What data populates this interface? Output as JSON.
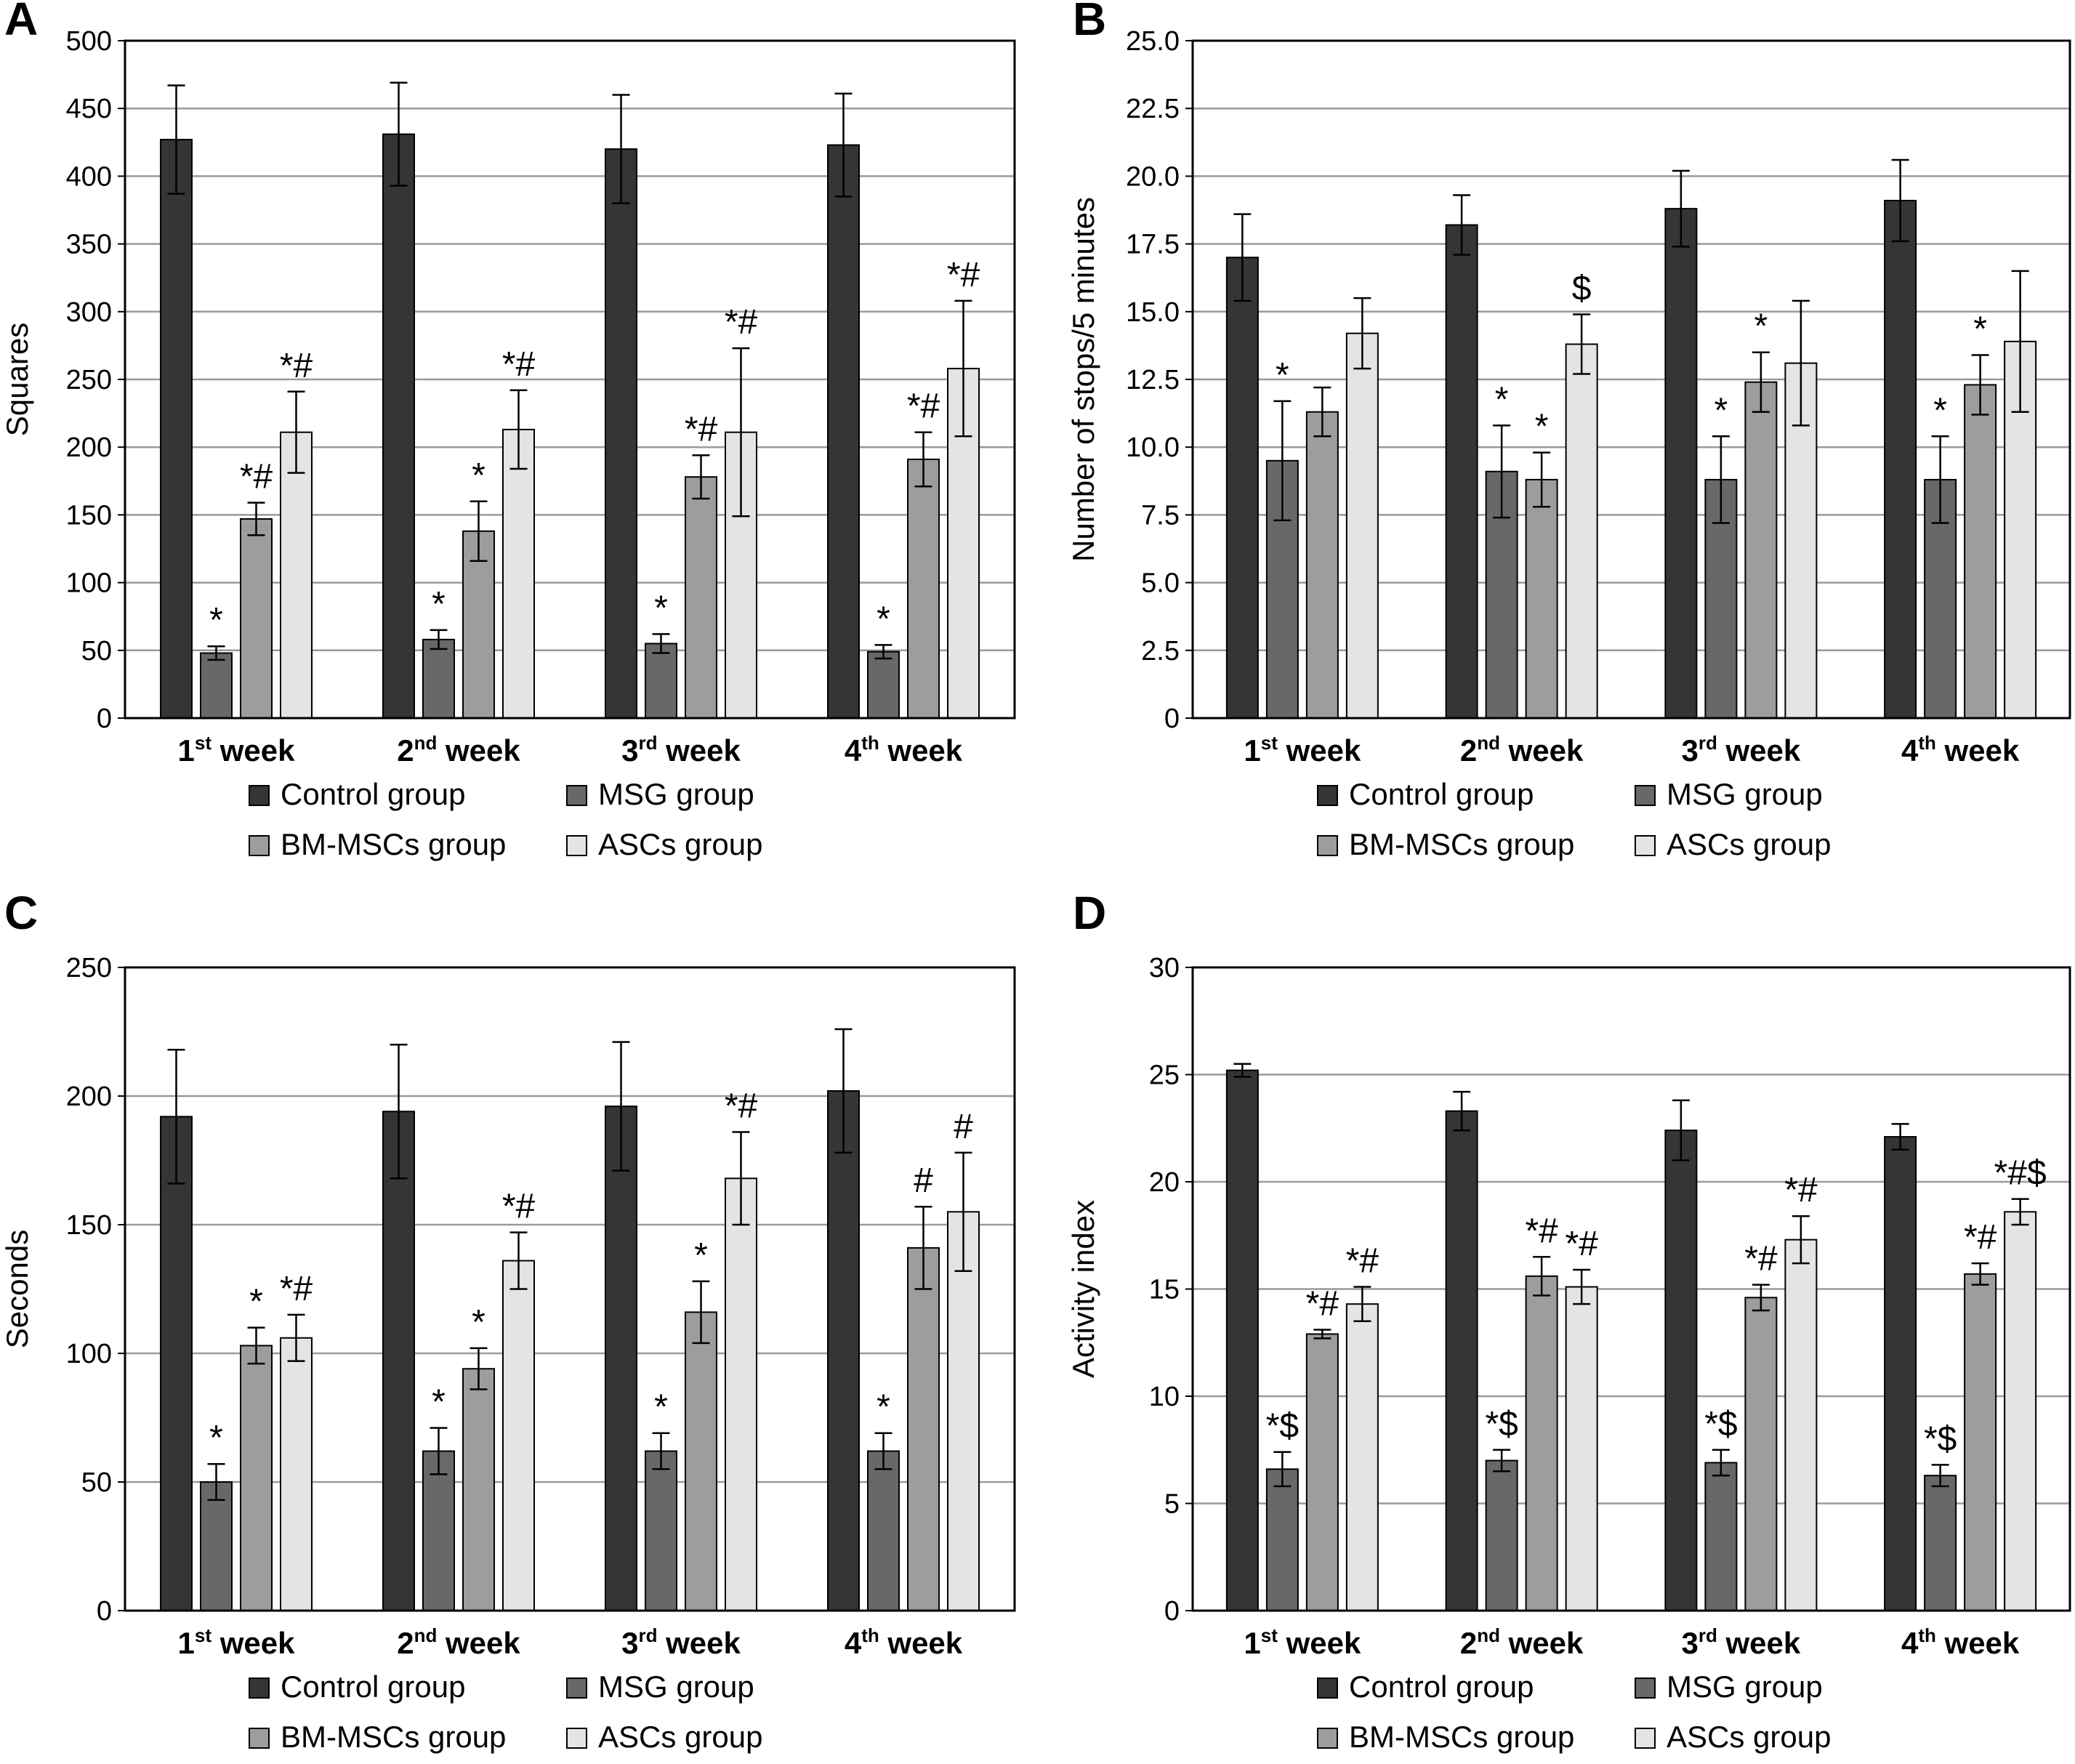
{
  "colors": {
    "control": "#353535",
    "msg": "#686868",
    "bmmsc": "#9d9d9d",
    "asc": "#e4e4e4",
    "grid": "#9a9a9a",
    "axis": "#000000"
  },
  "legend_labels": [
    "Control group",
    "MSG group",
    "BM-MSCs group",
    "ASCs group"
  ],
  "chart_data": [
    {
      "panel_label": "A",
      "type": "bar",
      "ylabel": "Squares",
      "ylim": [
        0,
        500
      ],
      "yticks": [
        "0",
        "50",
        "100",
        "150",
        "200",
        "250",
        "300",
        "350",
        "400",
        "450",
        "500"
      ],
      "grid": true,
      "legend_position": "bottom",
      "categories": [
        {
          "num": "1",
          "sup": "st",
          "word": "week"
        },
        {
          "num": "2",
          "sup": "nd",
          "word": "week"
        },
        {
          "num": "3",
          "sup": "rd",
          "word": "week"
        },
        {
          "num": "4",
          "sup": "th",
          "word": "week"
        }
      ],
      "series": [
        {
          "name": "Control group",
          "values": [
            427,
            431,
            420,
            423
          ],
          "errors": [
            40,
            38,
            40,
            38
          ],
          "annotations": [
            "",
            "",
            "",
            ""
          ]
        },
        {
          "name": "MSG group",
          "values": [
            48,
            58,
            55,
            49
          ],
          "errors": [
            5,
            7,
            7,
            5
          ],
          "annotations": [
            "*",
            "*",
            "*",
            "*"
          ]
        },
        {
          "name": "BM-MSCs group",
          "values": [
            147,
            138,
            178,
            191
          ],
          "errors": [
            12,
            22,
            16,
            20
          ],
          "annotations": [
            "*#",
            "*",
            "*#",
            "*#"
          ]
        },
        {
          "name": "ASCs group",
          "values": [
            211,
            213,
            211,
            258
          ],
          "errors": [
            30,
            29,
            62,
            50
          ],
          "annotations": [
            "*#",
            "*#",
            "*#",
            "*#"
          ]
        }
      ]
    },
    {
      "panel_label": "B",
      "type": "bar",
      "ylabel": "Number of stops/5 minutes",
      "ylim": [
        0,
        25
      ],
      "yticks": [
        "0",
        "2.5",
        "5.0",
        "7.5",
        "10.0",
        "12.5",
        "15.0",
        "17.5",
        "20.0",
        "22.5",
        "25.0"
      ],
      "grid": true,
      "legend_position": "bottom",
      "categories": [
        {
          "num": "1",
          "sup": "st",
          "word": "week"
        },
        {
          "num": "2",
          "sup": "nd",
          "word": "week"
        },
        {
          "num": "3",
          "sup": "rd",
          "word": "week"
        },
        {
          "num": "4",
          "sup": "th",
          "word": "week"
        }
      ],
      "series": [
        {
          "name": "Control group",
          "values": [
            17.0,
            18.2,
            18.8,
            19.1
          ],
          "errors": [
            1.6,
            1.1,
            1.4,
            1.5
          ],
          "annotations": [
            "",
            "",
            "",
            ""
          ]
        },
        {
          "name": "MSG group",
          "values": [
            9.5,
            9.1,
            8.8,
            8.8
          ],
          "errors": [
            2.2,
            1.7,
            1.6,
            1.6
          ],
          "annotations": [
            "*",
            "*",
            "*",
            "*"
          ]
        },
        {
          "name": "BM-MSCs group",
          "values": [
            11.3,
            8.8,
            12.4,
            12.3
          ],
          "errors": [
            0.9,
            1.0,
            1.1,
            1.1
          ],
          "annotations": [
            "",
            "*",
            "*",
            "*"
          ]
        },
        {
          "name": "ASCs group",
          "values": [
            14.2,
            13.8,
            13.1,
            13.9
          ],
          "errors": [
            1.3,
            1.1,
            2.3,
            2.6
          ],
          "annotations": [
            "",
            "$",
            "",
            ""
          ]
        }
      ]
    },
    {
      "panel_label": "C",
      "type": "bar",
      "ylabel": "Seconds",
      "ylim": [
        0,
        250
      ],
      "yticks": [
        "0",
        "50",
        "100",
        "150",
        "200",
        "250"
      ],
      "grid": true,
      "legend_position": "bottom",
      "categories": [
        {
          "num": "1",
          "sup": "st",
          "word": "week"
        },
        {
          "num": "2",
          "sup": "nd",
          "word": "week"
        },
        {
          "num": "3",
          "sup": "rd",
          "word": "week"
        },
        {
          "num": "4",
          "sup": "th",
          "word": "week"
        }
      ],
      "series": [
        {
          "name": "Control group",
          "values": [
            192,
            194,
            196,
            202
          ],
          "errors": [
            26,
            26,
            25,
            24
          ],
          "annotations": [
            "",
            "",
            "",
            ""
          ]
        },
        {
          "name": "MSG group",
          "values": [
            50,
            62,
            62,
            62
          ],
          "errors": [
            7,
            9,
            7,
            7
          ],
          "annotations": [
            "*",
            "*",
            "*",
            "*"
          ]
        },
        {
          "name": "BM-MSCs group",
          "values": [
            103,
            94,
            116,
            141
          ],
          "errors": [
            7,
            8,
            12,
            16
          ],
          "annotations": [
            "*",
            "*",
            "*",
            "#"
          ]
        },
        {
          "name": "ASCs group",
          "values": [
            106,
            136,
            168,
            155
          ],
          "errors": [
            9,
            11,
            18,
            23
          ],
          "annotations": [
            "*#",
            "*#",
            "*#",
            "#"
          ]
        }
      ]
    },
    {
      "panel_label": "D",
      "type": "bar",
      "ylabel": "Activity index",
      "ylim": [
        0,
        30
      ],
      "yticks": [
        "0",
        "5",
        "10",
        "15",
        "20",
        "25",
        "30"
      ],
      "grid": true,
      "legend_position": "bottom",
      "categories": [
        {
          "num": "1",
          "sup": "st",
          "word": "week"
        },
        {
          "num": "2",
          "sup": "nd",
          "word": "week"
        },
        {
          "num": "3",
          "sup": "rd",
          "word": "week"
        },
        {
          "num": "4",
          "sup": "th",
          "word": "week"
        }
      ],
      "series": [
        {
          "name": "Control group",
          "values": [
            25.2,
            23.3,
            22.4,
            22.1
          ],
          "errors": [
            0.3,
            0.9,
            1.4,
            0.6
          ],
          "annotations": [
            "",
            "",
            "",
            ""
          ]
        },
        {
          "name": "MSG group",
          "values": [
            6.6,
            7.0,
            6.9,
            6.3
          ],
          "errors": [
            0.8,
            0.5,
            0.6,
            0.5
          ],
          "annotations": [
            "*$",
            "*$",
            "*$",
            "*$"
          ]
        },
        {
          "name": "BM-MSCs group",
          "values": [
            12.9,
            15.6,
            14.6,
            15.7
          ],
          "errors": [
            0.2,
            0.9,
            0.6,
            0.5
          ],
          "annotations": [
            "*#",
            "*#",
            "*#",
            "*#"
          ]
        },
        {
          "name": "ASCs group",
          "values": [
            14.3,
            15.1,
            17.3,
            18.6
          ],
          "errors": [
            0.8,
            0.8,
            1.1,
            0.6
          ],
          "annotations": [
            "*#",
            "*#",
            "*#",
            "*#$"
          ]
        }
      ]
    }
  ]
}
